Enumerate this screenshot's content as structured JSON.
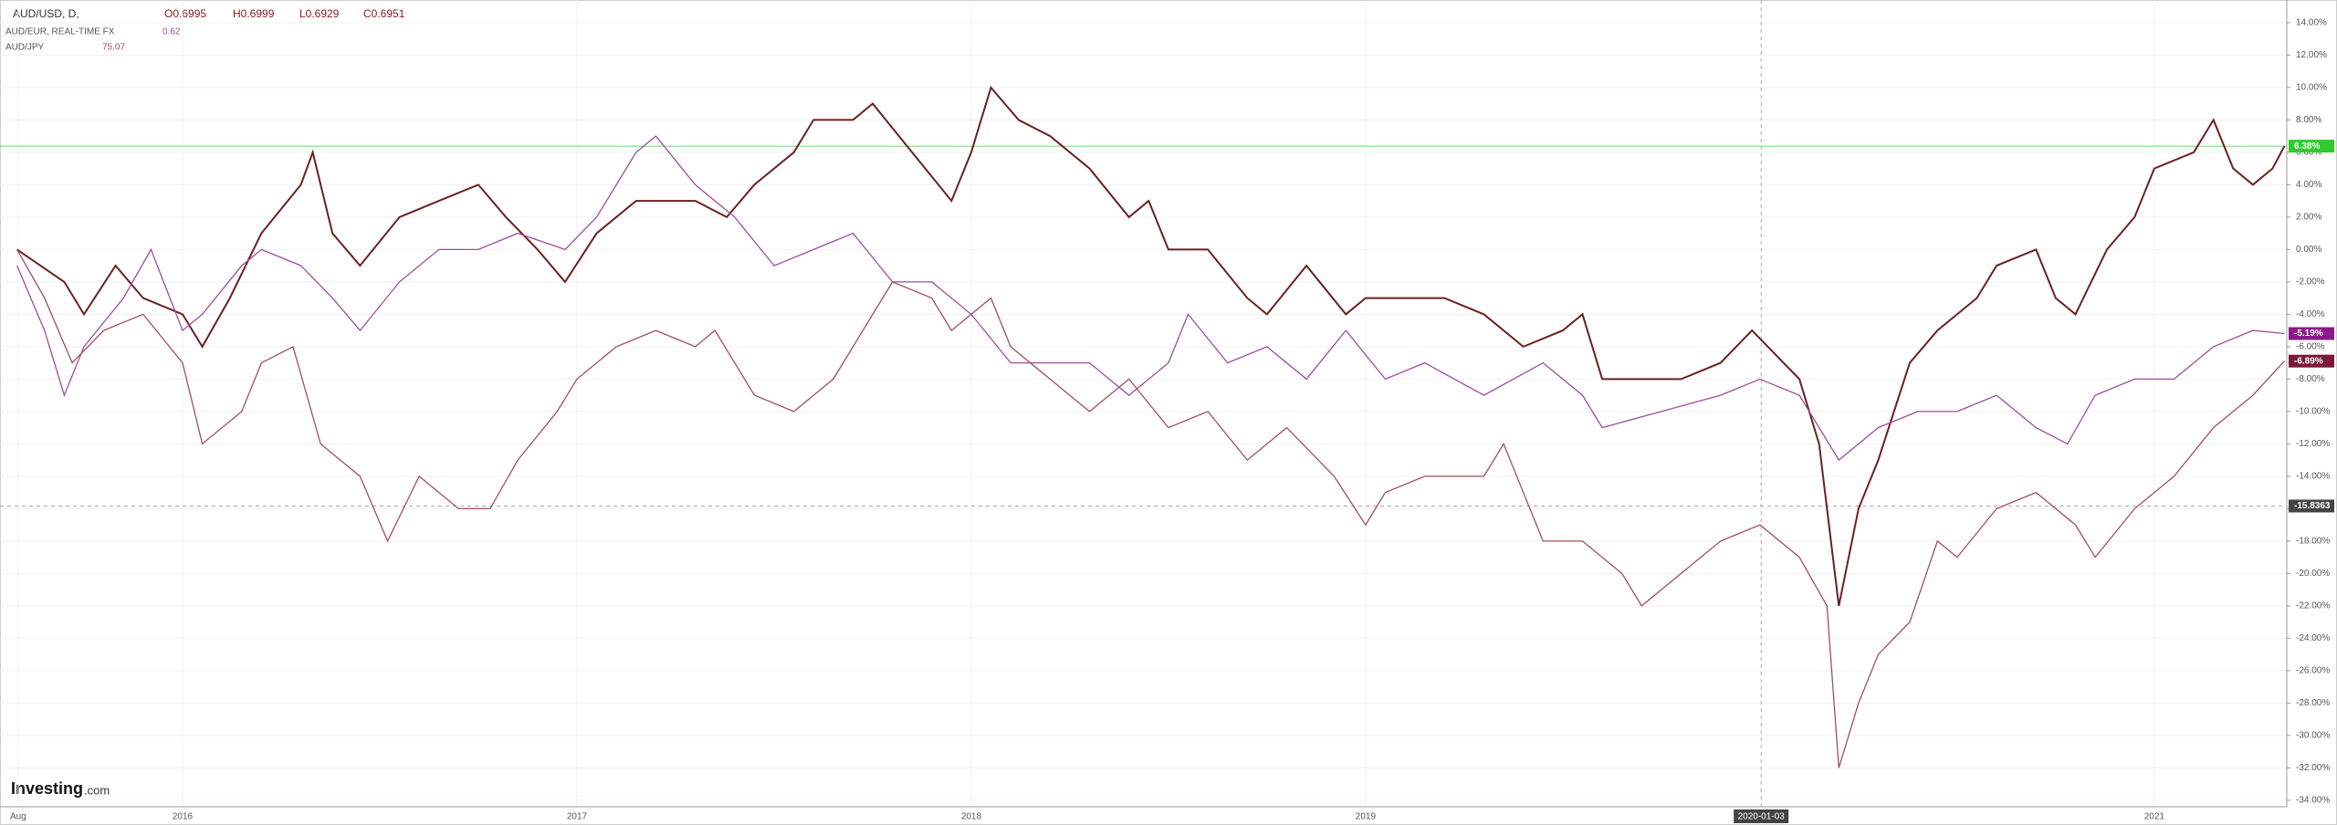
{
  "chart_data": {
    "type": "line",
    "header": {
      "symbol": "AUD/USD, D,",
      "open": "O0.6995",
      "high": "H0.6999",
      "low": "L0.6929",
      "close": "C0.6951"
    },
    "series": [
      {
        "name": "AUD/USD, D,",
        "color": "#6b2020",
        "x": [
          2015.58,
          2015.7,
          2015.75,
          2015.83,
          2015.9,
          2016.0,
          2016.05,
          2016.12,
          2016.2,
          2016.3,
          2016.33,
          2016.38,
          2016.45,
          2016.55,
          2016.65,
          2016.75,
          2016.82,
          2016.9,
          2016.97,
          2017.05,
          2017.15,
          2017.3,
          2017.38,
          2017.45,
          2017.55,
          2017.6,
          2017.7,
          2017.75,
          2017.85,
          2017.95,
          2018.0,
          2018.05,
          2018.12,
          2018.2,
          2018.3,
          2018.4,
          2018.45,
          2018.5,
          2018.6,
          2018.7,
          2018.75,
          2018.85,
          2018.95,
          2019.0,
          2019.1,
          2019.2,
          2019.3,
          2019.4,
          2019.5,
          2019.55,
          2019.6,
          2019.7,
          2019.8,
          2019.9,
          2019.98,
          2020.1,
          2020.15,
          2020.2,
          2020.25,
          2020.3,
          2020.38,
          2020.45,
          2020.55,
          2020.6,
          2020.7,
          2020.75,
          2020.8,
          2020.88,
          2020.95,
          2021.0,
          2021.1,
          2021.15,
          2021.2,
          2021.25,
          2021.3,
          2021.33
        ],
        "values": [
          0,
          -2,
          -4,
          -1,
          -3,
          -4,
          -6,
          -3,
          1,
          4,
          6,
          1,
          -1,
          2,
          3,
          4,
          2,
          0,
          -2,
          1,
          3,
          3,
          2,
          4,
          6,
          8,
          8,
          9,
          6,
          3,
          6,
          10,
          8,
          7,
          5,
          2,
          3,
          0,
          0,
          -3,
          -4,
          -1,
          -4,
          -3,
          -3,
          -3,
          -4,
          -6,
          -5,
          -4,
          -8,
          -8,
          -8,
          -7,
          -5,
          -8,
          -12,
          -22,
          -16,
          -13,
          -7,
          -5,
          -3,
          -1,
          0,
          -3,
          -4,
          0,
          2,
          5,
          6,
          8,
          5,
          4,
          5,
          6.38
        ]
      },
      {
        "name": "AUD/EUR, REAL-TIME FX",
        "readout": 0.62,
        "color": "#9b4f9b",
        "x": [
          2015.58,
          2015.65,
          2015.7,
          2015.75,
          2015.85,
          2015.92,
          2016.0,
          2016.05,
          2016.15,
          2016.2,
          2016.3,
          2016.38,
          2016.45,
          2016.55,
          2016.65,
          2016.75,
          2016.85,
          2016.97,
          2017.05,
          2017.15,
          2017.2,
          2017.3,
          2017.4,
          2017.5,
          2017.6,
          2017.7,
          2017.8,
          2017.9,
          2018.0,
          2018.1,
          2018.2,
          2018.3,
          2018.4,
          2018.5,
          2018.55,
          2018.65,
          2018.75,
          2018.85,
          2018.95,
          2019.05,
          2019.15,
          2019.3,
          2019.45,
          2019.55,
          2019.6,
          2019.75,
          2019.9,
          2020.0,
          2020.1,
          2020.2,
          2020.3,
          2020.4,
          2020.5,
          2020.6,
          2020.7,
          2020.78,
          2020.85,
          2020.95,
          2021.05,
          2021.15,
          2021.25,
          2021.33
        ],
        "values": [
          -1,
          -5,
          -9,
          -6,
          -3,
          0,
          -5,
          -4,
          -1,
          0,
          -1,
          -3,
          -5,
          -2,
          0,
          0,
          1,
          0,
          2,
          6,
          7,
          4,
          2,
          -1,
          0,
          1,
          -2,
          -2,
          -4,
          -7,
          -7,
          -7,
          -9,
          -7,
          -4,
          -7,
          -6,
          -8,
          -5,
          -8,
          -7,
          -9,
          -7,
          -9,
          -11,
          -10,
          -9,
          -8,
          -9,
          -13,
          -11,
          -10,
          -10,
          -9,
          -11,
          -12,
          -9,
          -8,
          -8,
          -6,
          -5,
          -5.19
        ]
      },
      {
        "name": "AUD/JPY",
        "readout": 75.07,
        "color": "#a0505a",
        "x": [
          2015.58,
          2015.65,
          2015.72,
          2015.8,
          2015.9,
          2016.0,
          2016.05,
          2016.15,
          2016.2,
          2016.28,
          2016.35,
          2016.45,
          2016.52,
          2016.6,
          2016.7,
          2016.78,
          2016.85,
          2016.95,
          2017.0,
          2017.1,
          2017.2,
          2017.3,
          2017.35,
          2017.45,
          2017.55,
          2017.65,
          2017.75,
          2017.8,
          2017.9,
          2017.95,
          2018.05,
          2018.1,
          2018.2,
          2018.3,
          2018.4,
          2018.5,
          2018.6,
          2018.7,
          2018.8,
          2018.92,
          2019.0,
          2019.05,
          2019.15,
          2019.3,
          2019.35,
          2019.45,
          2019.55,
          2019.65,
          2019.7,
          2019.8,
          2019.9,
          2020.0,
          2020.1,
          2020.17,
          2020.2,
          2020.25,
          2020.3,
          2020.38,
          2020.45,
          2020.5,
          2020.6,
          2020.7,
          2020.8,
          2020.85,
          2020.95,
          2021.05,
          2021.15,
          2021.25,
          2021.33
        ],
        "values": [
          0,
          -3,
          -7,
          -5,
          -4,
          -7,
          -12,
          -10,
          -7,
          -6,
          -12,
          -14,
          -18,
          -14,
          -16,
          -16,
          -13,
          -10,
          -8,
          -6,
          -5,
          -6,
          -5,
          -9,
          -10,
          -8,
          -4,
          -2,
          -3,
          -5,
          -3,
          -6,
          -8,
          -10,
          -8,
          -11,
          -10,
          -13,
          -11,
          -14,
          -17,
          -15,
          -14,
          -14,
          -12,
          -18,
          -18,
          -20,
          -22,
          -20,
          -18,
          -17,
          -19,
          -22,
          -32,
          -28,
          -25,
          -23,
          -18,
          -19,
          -16,
          -15,
          -17,
          -19,
          -16,
          -14,
          -11,
          -9,
          -6.89
        ]
      }
    ],
    "price_labels": [
      {
        "value": 6.38,
        "label": "6.38%",
        "color": "#2ecc2e"
      },
      {
        "value": -5.19,
        "label": "-5.19%",
        "color": "#8b1a8b"
      },
      {
        "value": -6.89,
        "label": "-6.89%",
        "color": "#7a1a3a"
      },
      {
        "value": -15.8363,
        "label": "-15.8363",
        "color": "#444444"
      }
    ],
    "price_line": 6.38,
    "crosshair": {
      "x": {
        "value": 2020.003,
        "label": "2020-01-03"
      },
      "y": -15.8363
    },
    "xlim": [
      2015.537,
      2021.336
    ],
    "xticks": [
      {
        "value": 2015.583,
        "label": "Aug"
      },
      2016,
      2017,
      2018,
      2019,
      2021
    ],
    "ylim": [
      -34.4,
      15.4
    ],
    "yticks": [
      {
        "value": 14,
        "label": "14.00%"
      },
      {
        "value": 12,
        "label": "12.00%"
      },
      {
        "value": 10,
        "label": "10.00%"
      },
      {
        "value": 8,
        "label": "8.00%"
      },
      {
        "value": 6,
        "label": "6.00%"
      },
      {
        "value": 4,
        "label": "4.00%"
      },
      {
        "value": 2,
        "label": "2.00%"
      },
      {
        "value": 0,
        "label": "0.00%"
      },
      {
        "value": -2,
        "label": "-2.00%"
      },
      {
        "value": -4,
        "label": "-4.00%"
      },
      {
        "value": -6,
        "label": "-6.00%"
      },
      {
        "value": -8,
        "label": "-8.00%"
      },
      {
        "value": -10,
        "label": "-10.00%"
      },
      {
        "value": -12,
        "label": "-12.00%"
      },
      {
        "value": -14,
        "label": "-14.00%"
      },
      {
        "value": -16,
        "label": "-16.00%"
      },
      {
        "value": -18,
        "label": "-18.00%"
      },
      {
        "value": -20,
        "label": "-20.00%"
      },
      {
        "value": -22,
        "label": "-22.00%"
      },
      {
        "value": -24,
        "label": "-24.00%"
      },
      {
        "value": -26,
        "label": "-26.00%"
      },
      {
        "value": -28,
        "label": "-28.00%"
      },
      {
        "value": -30,
        "label": "-30.00%"
      },
      {
        "value": -32,
        "label": "-32.00%"
      },
      {
        "value": -34,
        "label": "-34.00%"
      }
    ],
    "grid": true,
    "logo": {
      "brand": "Investing",
      "suffix": ".com"
    }
  }
}
